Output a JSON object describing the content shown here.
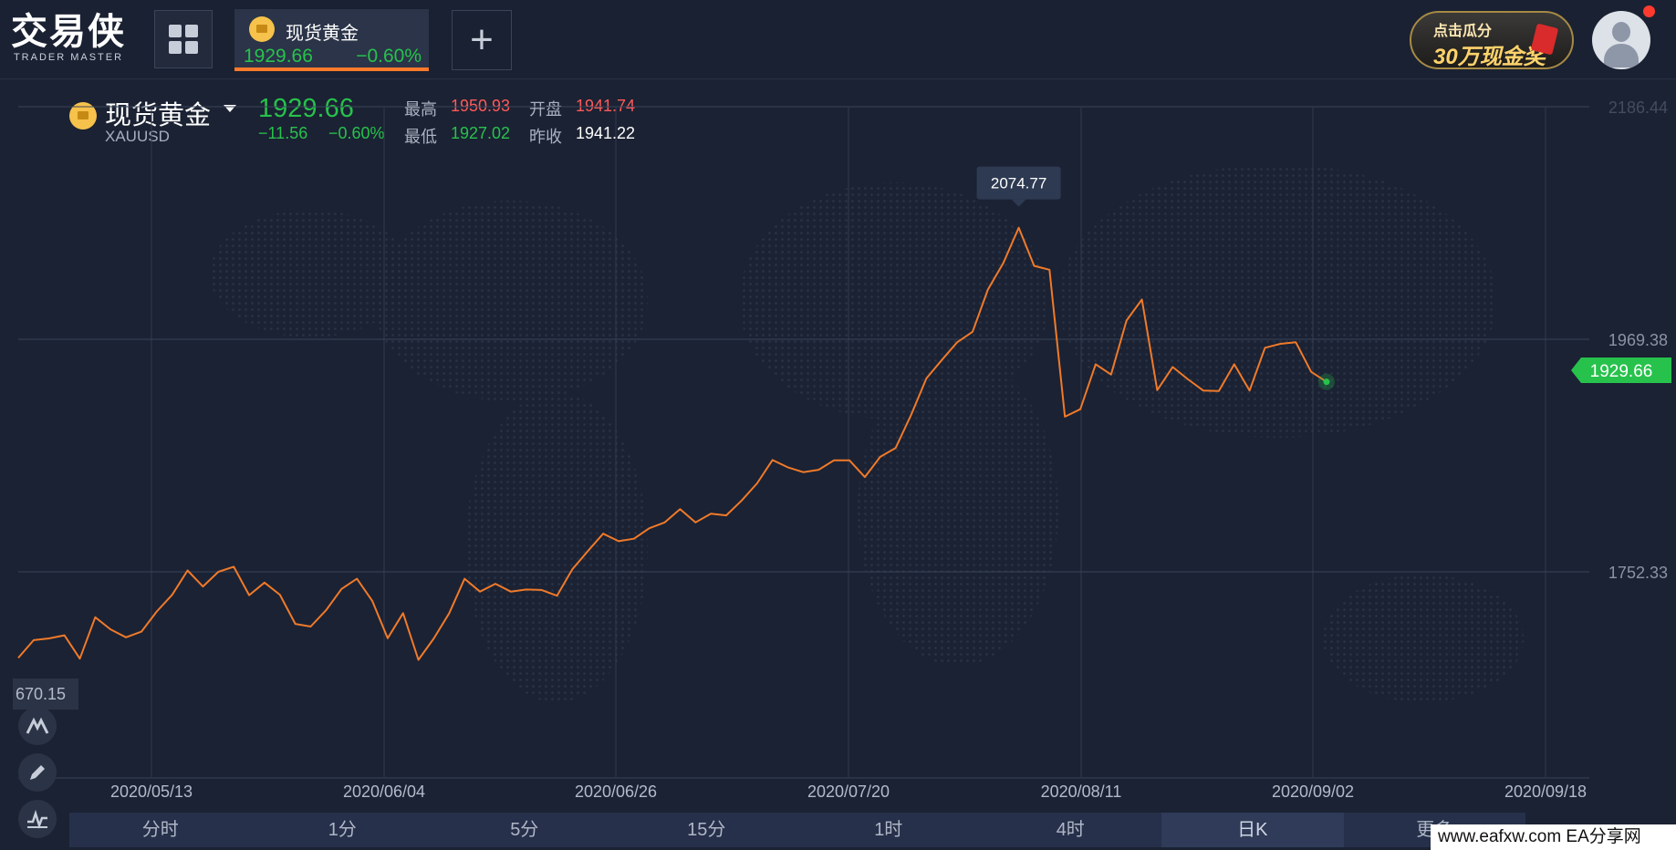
{
  "header": {
    "logo_text": "交易侠",
    "logo_subtitle": "TRADER MASTER",
    "tab": {
      "name": "现货黄金",
      "price": "1929.66",
      "change_pct": "−0.60%"
    },
    "add_button": "+",
    "promo_line1": "点击瓜分",
    "promo_line2": "30万现金奖"
  },
  "quote": {
    "name": "现货黄金",
    "code": "XAUUSD",
    "price": "1929.66",
    "change": "−11.56",
    "change_pct": "−0.60%",
    "high_label": "最高",
    "high": "1950.93",
    "open_label": "开盘",
    "open": "1941.74",
    "low_label": "最低",
    "low": "1927.02",
    "prev_label": "昨收",
    "prev_close": "1941.22"
  },
  "chart_data": {
    "type": "line",
    "series": [
      {
        "values": [
          1672.0,
          1688.6,
          1690.2,
          1693.1,
          1671.3,
          1709.9,
          1698.6,
          1691.2,
          1696.5,
          1715.3,
          1730.9,
          1753.6,
          1738.6,
          1752.3,
          1757.1,
          1730.5,
          1742.3,
          1731.0,
          1703.7,
          1701.3,
          1716.5,
          1736.3,
          1745.9,
          1725.3,
          1690.4,
          1713.8,
          1670.2,
          1690.2,
          1713.8,
          1745.9,
          1733.9,
          1741.2,
          1733.9,
          1735.8,
          1735.4,
          1730.0,
          1754.7,
          1771.6,
          1787.9,
          1780.9,
          1783.2,
          1793.0,
          1798.5,
          1810.8,
          1798.5,
          1806.6,
          1805.0,
          1818.9,
          1834.9,
          1856.7,
          1849.9,
          1845.4,
          1847.6,
          1856.4,
          1856.4,
          1840.8,
          1859.7,
          1867.8,
          1898.6,
          1932.9,
          1950.0,
          1966.6,
          1976.4,
          2015.8,
          2040.5,
          2073.5,
          2037.9,
          2034.2,
          1897.1,
          1904.1,
          1946.1,
          1936.4,
          1986.8,
          2006.5,
          1921.9,
          1943.5,
          1931.9,
          1921.5,
          1921.0,
          1946.1,
          1921.5,
          1961.5,
          1965.1,
          1966.6,
          1939.0,
          1929.66
        ]
      }
    ],
    "x_tick_labels": [
      "2020/05/13",
      "2020/06/04",
      "2020/06/26",
      "2020/07/20",
      "2020/08/11",
      "2020/09/02",
      "2020/09/18"
    ],
    "y_tick_labels": [
      "2186.44",
      "1969.38",
      "1752.33",
      "670.15"
    ],
    "max_label": "2074.77",
    "last_price_label": "1929.66",
    "grid": true,
    "colors": {
      "line": "#f07a2a",
      "up": "#27c24c",
      "down": "#ff4d4d",
      "bg": "#1b2233"
    }
  },
  "periods": [
    "分时",
    "1分",
    "5分",
    "15分",
    "1时",
    "4时",
    "日K",
    "更多"
  ],
  "active_period": "日K",
  "watermark": "www.eafxw.com    EA分享网"
}
